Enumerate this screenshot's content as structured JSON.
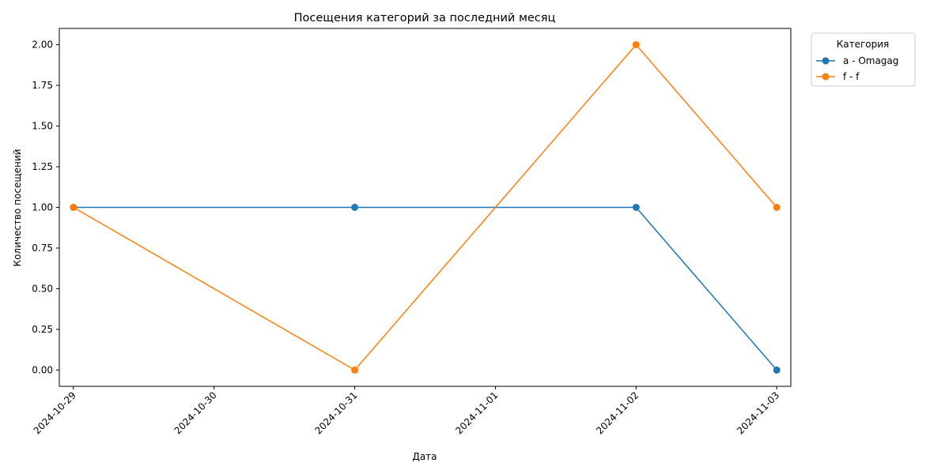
{
  "chart_data": {
    "type": "line",
    "title": "Посещения категорий за последний месяц",
    "xlabel": "Дата",
    "ylabel": "Количество посещений",
    "x_ticks": [
      "2024-10-29",
      "2024-10-30",
      "2024-10-31",
      "2024-11-01",
      "2024-11-02",
      "2024-11-03"
    ],
    "y_ticks": [
      "0.00",
      "0.25",
      "0.50",
      "0.75",
      "1.00",
      "1.25",
      "1.50",
      "1.75",
      "2.00"
    ],
    "ylim": [
      -0.1,
      2.1
    ],
    "xlim": [
      "2024-10-28 21:36",
      "2024-11-03 02:24"
    ],
    "grid": false,
    "legend": {
      "title": "Категория",
      "placement": "outside-top-right"
    },
    "series": [
      {
        "name": "a - Omagag",
        "color": "#1f77b4",
        "marker": "circle",
        "x": [
          "2024-10-29",
          "2024-10-31",
          "2024-11-02",
          "2024-11-03"
        ],
        "y": [
          1,
          1,
          1,
          0
        ]
      },
      {
        "name": "f - f",
        "color": "#ff7f0e",
        "marker": "circle",
        "x": [
          "2024-10-29",
          "2024-10-31",
          "2024-11-02",
          "2024-11-03"
        ],
        "y": [
          1,
          0,
          2,
          1
        ]
      }
    ]
  }
}
